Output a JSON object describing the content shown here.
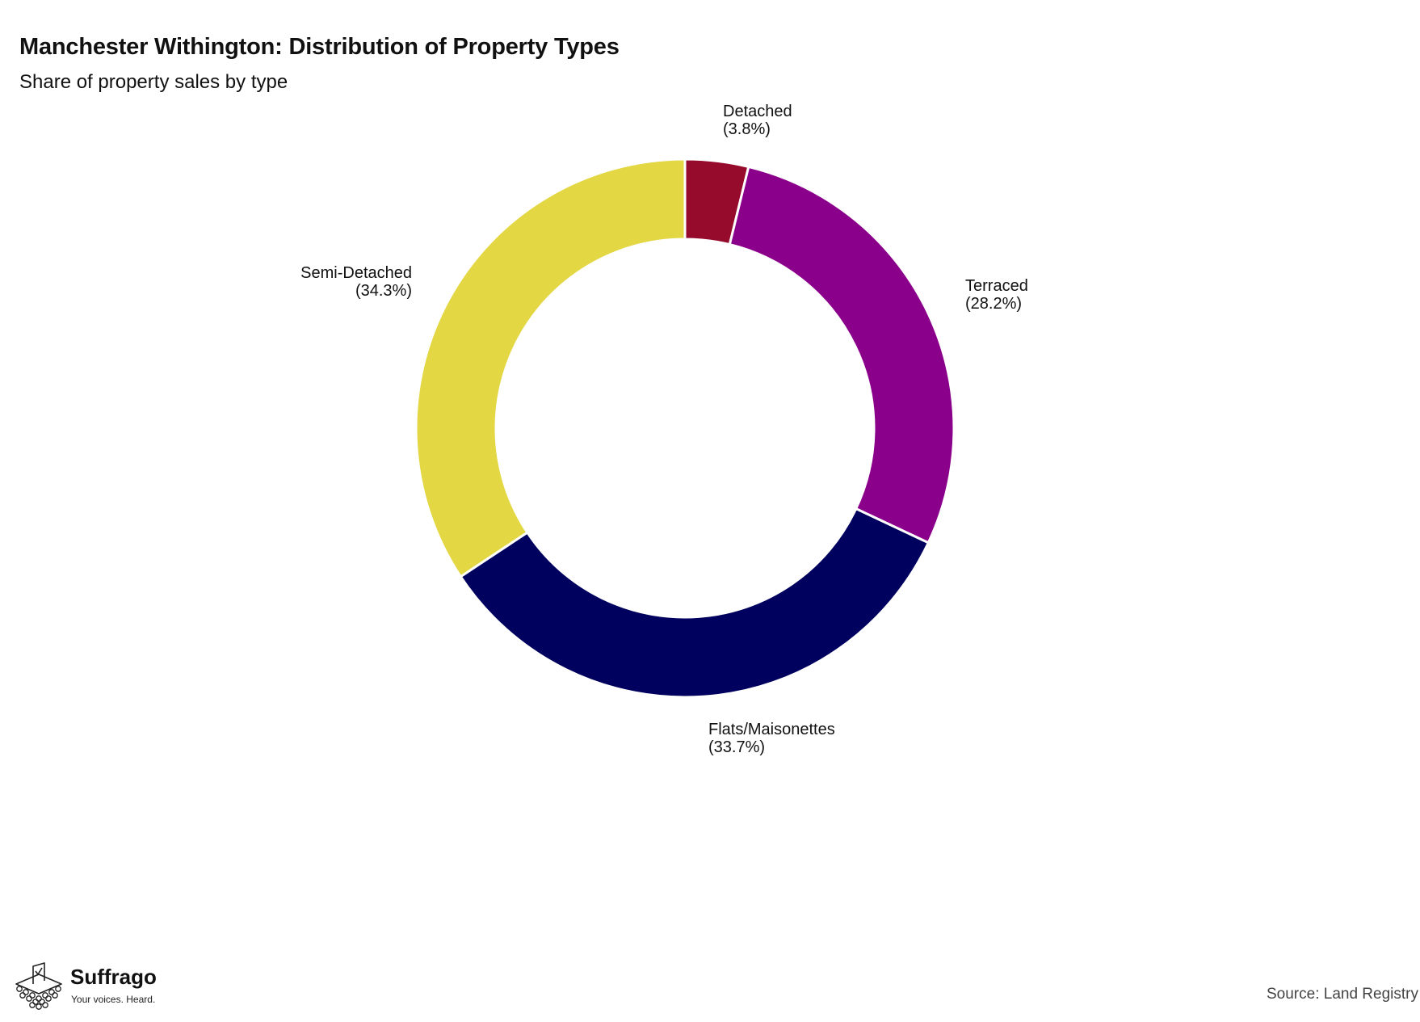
{
  "title": "Manchester Withington: Distribution of Property Types",
  "subtitle": "Share of property sales by type",
  "source": "Source: Land Registry",
  "logo": {
    "name": "Suffrago",
    "tagline": "Your voices. Heard.",
    "icon": "ballot-box-icon"
  },
  "chart_data": {
    "type": "pie",
    "style": "donut",
    "title": "Manchester Withington: Distribution of Property Types",
    "subtitle": "Share of property sales by type",
    "direction": "clockwise from top",
    "categories": [
      "Detached",
      "Terraced",
      "Flats/Maisonettes",
      "Semi-Detached"
    ],
    "values": [
      3.8,
      28.2,
      33.7,
      34.3
    ],
    "labels": [
      "(3.8%)",
      "(28.2%)",
      "(33.7%)",
      "(34.3%)"
    ],
    "colors": [
      "#960A2C",
      "#8B008B",
      "#00005E",
      "#E3D744"
    ],
    "slice_border_color": "#ffffff",
    "legend": "none"
  }
}
